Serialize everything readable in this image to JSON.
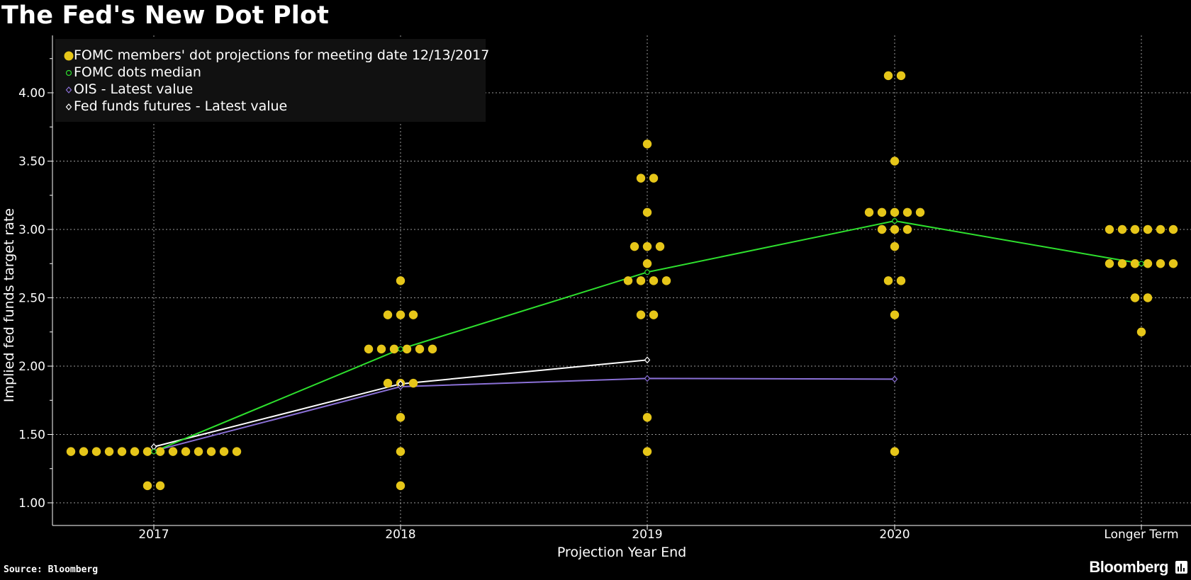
{
  "title": "The Fed's New Dot Plot",
  "source": "Source: Bloomberg",
  "brand": "Bloomberg",
  "colors": {
    "background": "#000000",
    "dots": "#e6c619",
    "median": "#2ee02e",
    "ois": "#8a70d6",
    "futures": "#ffffff",
    "grid": "#9a9a9a",
    "legend_bg": "#111111"
  },
  "legend": [
    {
      "label": "FOMC members' dot projections for meeting date 12/13/2017",
      "symbol": "dot-icon"
    },
    {
      "label": "FOMC dots median",
      "symbol": "circle-icon"
    },
    {
      "label": "OIS - Latest value",
      "symbol": "diamond-icon"
    },
    {
      "label": "Fed funds futures - Latest value",
      "symbol": "diamond-icon"
    }
  ],
  "chart_data": {
    "type": "scatter",
    "title": "The Fed's New Dot Plot",
    "xlabel": "Projection Year End",
    "ylabel": "Implied fed funds target rate",
    "categories": [
      "2017",
      "2018",
      "2019",
      "2020",
      "Longer Term"
    ],
    "ylim": [
      0.9,
      4.25
    ],
    "yticks": [
      "1.00",
      "1.50",
      "2.00",
      "2.50",
      "3.00",
      "3.50",
      "4.00"
    ],
    "grid": true,
    "legend_position": "top-left",
    "dots": [
      {
        "category": "2017",
        "values": [
          {
            "rate": 1.375,
            "count": 14
          },
          {
            "rate": 1.125,
            "count": 2
          }
        ]
      },
      {
        "category": "2018",
        "values": [
          {
            "rate": 2.625,
            "count": 1
          },
          {
            "rate": 2.375,
            "count": 3
          },
          {
            "rate": 2.125,
            "count": 6
          },
          {
            "rate": 1.875,
            "count": 3
          },
          {
            "rate": 1.625,
            "count": 1
          },
          {
            "rate": 1.375,
            "count": 1
          },
          {
            "rate": 1.125,
            "count": 1
          }
        ]
      },
      {
        "category": "2019",
        "values": [
          {
            "rate": 3.625,
            "count": 1
          },
          {
            "rate": 3.375,
            "count": 2
          },
          {
            "rate": 3.125,
            "count": 1
          },
          {
            "rate": 2.875,
            "count": 3
          },
          {
            "rate": 2.75,
            "count": 1
          },
          {
            "rate": 2.625,
            "count": 4
          },
          {
            "rate": 2.375,
            "count": 2
          },
          {
            "rate": 1.625,
            "count": 1
          },
          {
            "rate": 1.375,
            "count": 1
          }
        ]
      },
      {
        "category": "2020",
        "values": [
          {
            "rate": 4.125,
            "count": 2
          },
          {
            "rate": 3.5,
            "count": 1
          },
          {
            "rate": 3.125,
            "count": 5
          },
          {
            "rate": 3.0,
            "count": 3
          },
          {
            "rate": 2.875,
            "count": 1
          },
          {
            "rate": 2.625,
            "count": 2
          },
          {
            "rate": 2.375,
            "count": 1
          },
          {
            "rate": 1.375,
            "count": 1
          }
        ]
      },
      {
        "category": "Longer Term",
        "values": [
          {
            "rate": 3.0,
            "count": 6
          },
          {
            "rate": 2.75,
            "count": 6
          },
          {
            "rate": 2.5,
            "count": 2
          },
          {
            "rate": 2.25,
            "count": 1
          }
        ]
      }
    ],
    "series": [
      {
        "name": "FOMC dots median",
        "values": [
          1.375,
          2.125,
          2.6875,
          3.0625,
          2.75
        ]
      },
      {
        "name": "OIS - Latest value",
        "values": [
          1.38,
          1.85,
          1.91,
          1.905,
          null
        ]
      },
      {
        "name": "Fed funds futures - Latest value",
        "values": [
          1.41,
          1.87,
          2.045,
          null,
          null
        ]
      }
    ]
  }
}
